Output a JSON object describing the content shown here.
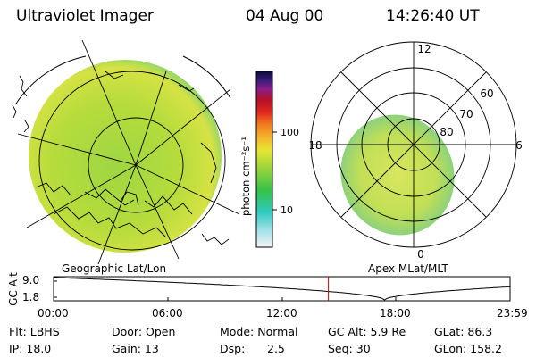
{
  "header": {
    "instrument": "Ultraviolet Imager",
    "date": "04 Aug 00",
    "time": "14:26:40 UT"
  },
  "colorbar": {
    "unit_label": "photon cm⁻²s⁻¹",
    "ticks": [
      "100",
      "10"
    ]
  },
  "geo_panel": {
    "caption": "Geographic Lat/Lon"
  },
  "mag_panel": {
    "caption": "Apex MLat/MLT",
    "mlt_labels": {
      "top": "12",
      "left": "18",
      "right": "6",
      "bottom": "0"
    },
    "mlat_labels": [
      "60",
      "70",
      "80"
    ]
  },
  "altitude_strip": {
    "axis_label": "GC Alt",
    "y_ticks": [
      "9.0",
      "1.8"
    ],
    "x_ticks": [
      "00:00",
      "06:00",
      "12:00",
      "18:00",
      "23:59"
    ],
    "current_time_fraction": 0.602,
    "marker_color": "#cc0000"
  },
  "info": {
    "filter": "Flt: LBHS",
    "ip": "IP: 18.0",
    "door": "Door: Open",
    "gain": "Gain: 13",
    "mode": "Mode: Normal",
    "dsp_label": "Dsp:",
    "dsp_value": "2.5",
    "gc_alt": "GC Alt: 5.9 Re",
    "seq": "Seq: 30",
    "glat": "GLat: 86.3",
    "glon": "GLon: 158.2"
  }
}
